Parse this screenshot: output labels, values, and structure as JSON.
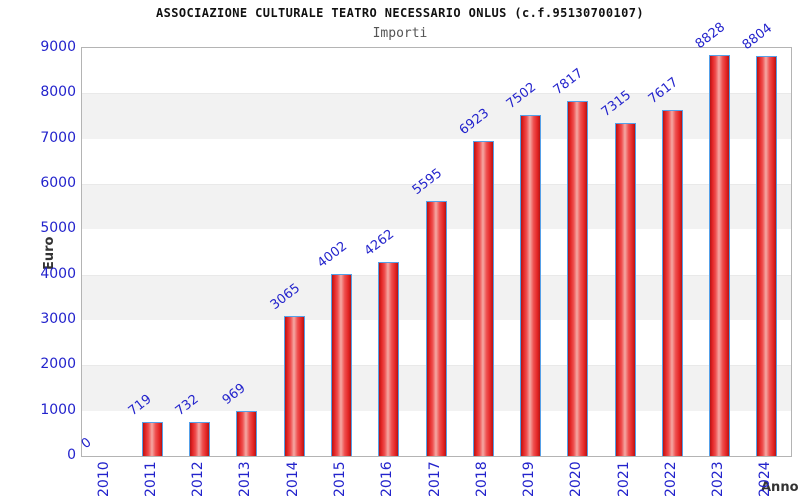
{
  "header": {
    "title": "ASSOCIAZIONE CULTURALE TEATRO NECESSARIO ONLUS (c.f.95130700107)",
    "subtitle": "Importi"
  },
  "axes": {
    "y_title": "Euro",
    "x_title": "Anno"
  },
  "chart_data": {
    "type": "bar",
    "title": "ASSOCIAZIONE CULTURALE TEATRO NECESSARIO ONLUS (c.f.95130700107)",
    "subtitle": "Importi",
    "xlabel": "Anno",
    "ylabel": "Euro",
    "categories": [
      "2010",
      "2011",
      "2012",
      "2013",
      "2014",
      "2015",
      "2016",
      "2017",
      "2018",
      "2019",
      "2020",
      "2021",
      "2022",
      "2023",
      "2024"
    ],
    "values": [
      0,
      719,
      732,
      969,
      3065,
      4002,
      4262,
      5595,
      6923,
      7502,
      7817,
      7315,
      7617,
      8828,
      8804
    ],
    "ylim": [
      0,
      9000
    ],
    "ytick_step": 1000,
    "yticks": [
      0,
      1000,
      2000,
      3000,
      4000,
      5000,
      6000,
      7000,
      8000,
      9000
    ],
    "grid": "alternating-horizontal-bands",
    "legend_position": "none",
    "bar_value_labels_rotated": true,
    "x_tick_labels_rotated": true
  },
  "colors": {
    "label_blue": "#2323cc",
    "band_gray": "#f2f2f2",
    "plot_border": "#b4b4b4",
    "title_color": "#111111",
    "subtitle_color": "#555555",
    "axis_title_color": "#333333",
    "bar_border_blue": "#55a0e8",
    "bar_red_edge": "#b51414",
    "bar_red_main": "#e32525",
    "bar_red_bright": "#ef5050",
    "bar_highlight_pink": "#f4a9a4"
  }
}
